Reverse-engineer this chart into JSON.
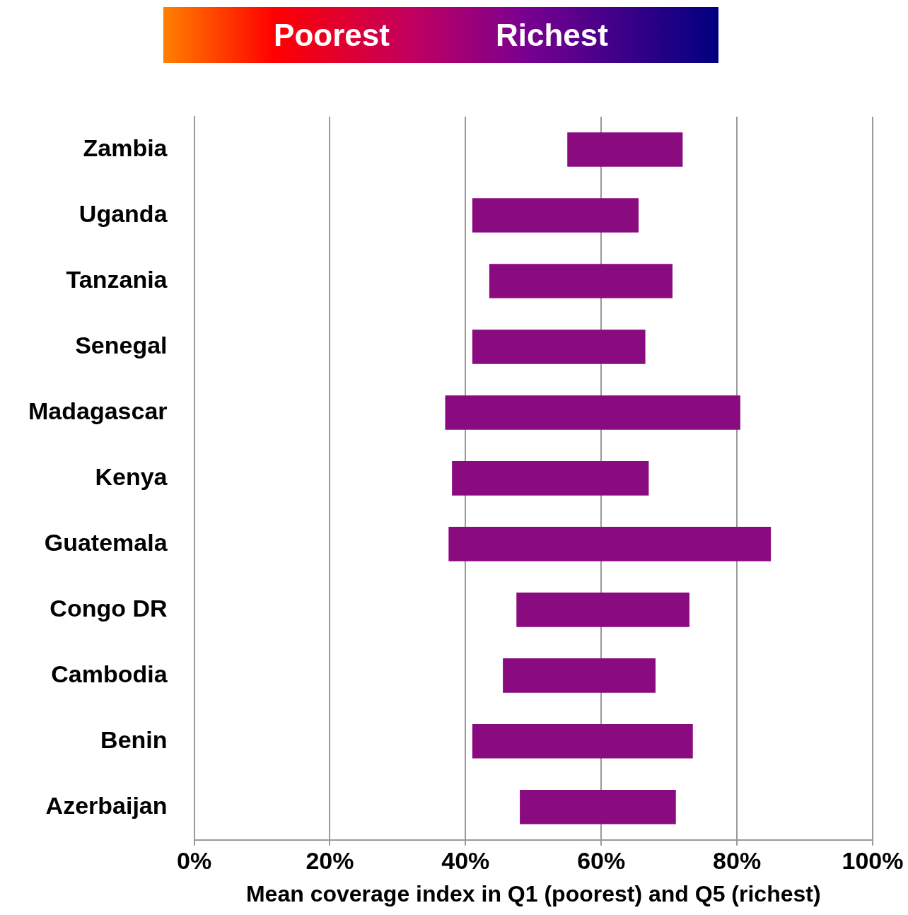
{
  "chart_data": {
    "type": "bar",
    "orientation": "horizontal",
    "xlabel": "Mean coverage index in Q1 (poorest) and Q5 (richest)",
    "categories": [
      "Zambia",
      "Uganda",
      "Tanzania",
      "Senegal",
      "Madagascar",
      "Kenya",
      "Guatemala",
      "Congo DR",
      "Cambodia",
      "Benin",
      "Azerbaijan"
    ],
    "base": [
      55,
      41,
      43.5,
      41,
      37,
      38,
      37.5,
      47.5,
      45.5,
      41,
      48
    ],
    "values": [
      17,
      24.5,
      27,
      25.5,
      43.5,
      29,
      47.5,
      25.5,
      22.5,
      32.5,
      23
    ],
    "color": "#8a0a80",
    "xlim": [
      0,
      100
    ],
    "xticks": [
      {
        "value": 0,
        "label": "0%"
      },
      {
        "value": 20,
        "label": "20%"
      },
      {
        "value": 40,
        "label": "40%"
      },
      {
        "value": 60,
        "label": "60%"
      },
      {
        "value": 80,
        "label": "80%"
      },
      {
        "value": 100,
        "label": "100%"
      }
    ],
    "grid": "x",
    "legend": false,
    "annotations": [
      "Poorest",
      "Richest"
    ]
  }
}
